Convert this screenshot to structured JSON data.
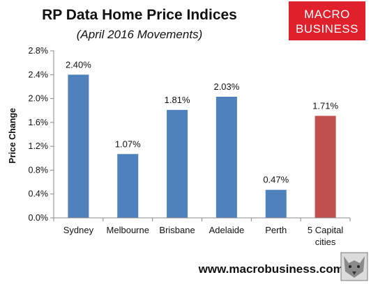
{
  "chart_data": {
    "type": "bar",
    "title": "RP Data Home Price Indices",
    "subtitle": "(April 2016 Movements)",
    "ylabel": "Price Change",
    "xlabel": "",
    "categories": [
      "Sydney",
      "Melbourne",
      "Brisbane",
      "Adelaide",
      "Perth",
      "5 Capital cities"
    ],
    "category_lines": [
      [
        "Sydney"
      ],
      [
        "Melbourne"
      ],
      [
        "Brisbane"
      ],
      [
        "Adelaide"
      ],
      [
        "Perth"
      ],
      [
        "5 Capital",
        "cities"
      ]
    ],
    "values": [
      2.4,
      1.07,
      1.81,
      2.03,
      0.47,
      1.71
    ],
    "data_labels": [
      "2.40%",
      "1.07%",
      "1.81%",
      "2.03%",
      "0.47%",
      "1.71%"
    ],
    "bar_colors": [
      "#4f81bd",
      "#4f81bd",
      "#4f81bd",
      "#4f81bd",
      "#4f81bd",
      "#c0504d"
    ],
    "ylim": [
      0,
      2.8
    ],
    "yticks": [
      0,
      0.4,
      0.8,
      1.2,
      1.6,
      2.0,
      2.4,
      2.8
    ],
    "ytick_labels": [
      "0.0%",
      "0.4%",
      "0.8%",
      "1.2%",
      "1.6%",
      "2.0%",
      "2.4%",
      "2.8%"
    ],
    "grid": false,
    "legend": "none"
  },
  "logo": {
    "line1": "MACRO",
    "line2": "BUSINESS",
    "color": "#e0202a"
  },
  "footer": {
    "url": "www.macrobusiness.com.au"
  }
}
